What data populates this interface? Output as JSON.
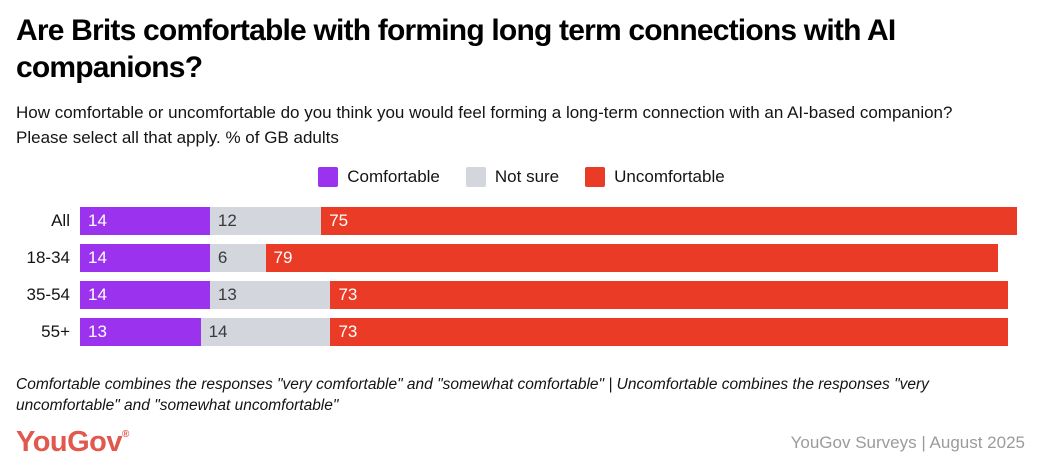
{
  "header": {
    "title": "Are Brits comfortable with forming long term connections with AI companions?",
    "subtitle": "How comfortable or uncomfortable do you think you would feel forming a long-term connection with an AI-based companion? Please select all that apply. % of GB adults"
  },
  "legend": [
    {
      "label": "Comfortable",
      "color": "#9b32ee"
    },
    {
      "label": "Not sure",
      "color": "#d3d6dd"
    },
    {
      "label": "Uncomfortable",
      "color": "#e93b26"
    }
  ],
  "chart_data": {
    "type": "bar",
    "orientation": "horizontal",
    "stacked": true,
    "categories": [
      "All",
      "18-34",
      "35-54",
      "55+"
    ],
    "series": [
      {
        "name": "Comfortable",
        "color": "#9b32ee",
        "values": [
          14,
          14,
          14,
          13
        ]
      },
      {
        "name": "Not sure",
        "color": "#d3d6dd",
        "values": [
          12,
          6,
          13,
          14
        ]
      },
      {
        "name": "Uncomfortable",
        "color": "#e93b26",
        "values": [
          75,
          79,
          73,
          73
        ]
      }
    ],
    "x_max": 101,
    "unit": "% of GB adults",
    "legend_position": "top-center",
    "grid": false,
    "value_labels": "inside-left"
  },
  "footnote": "Comfortable combines the responses \"very comfortable\" and \"somewhat comfortable\" | Uncomfortable combines the responses \"very uncomfortable\" and \"somewhat uncomfortable\"",
  "footer": {
    "logo_text": "YouGov",
    "logo_registered": "®",
    "logo_color": "#e0584e",
    "source_text": "YouGov Surveys | August 2025"
  }
}
